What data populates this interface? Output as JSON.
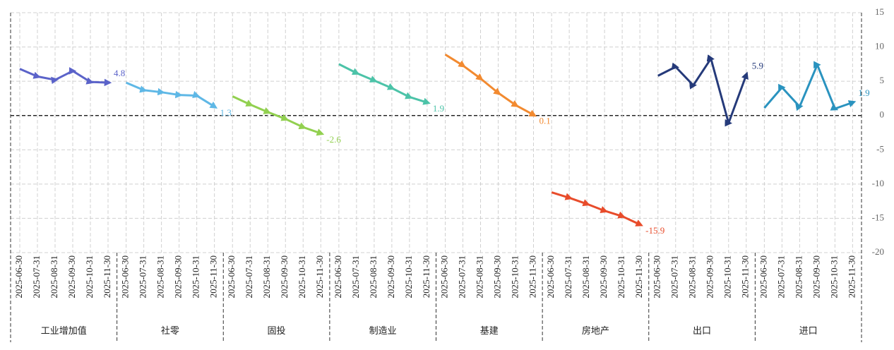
{
  "chart_data": {
    "type": "line",
    "x": [
      "2025-06-30",
      "2025-07-31",
      "2025-08-31",
      "2025-09-30",
      "2025-10-31",
      "2025-11-30"
    ],
    "series": [
      {
        "name": "工业增加值",
        "color": "#5b63c9",
        "values": [
          6.8,
          5.7,
          5.2,
          6.5,
          4.9,
          4.8
        ]
      },
      {
        "name": "社零",
        "color": "#5fb8e6",
        "values": [
          4.8,
          3.7,
          3.4,
          3.0,
          2.9,
          1.3
        ]
      },
      {
        "name": "固投",
        "color": "#92d050",
        "values": [
          2.8,
          1.6,
          0.5,
          -0.5,
          -1.7,
          -2.6
        ]
      },
      {
        "name": "制造业",
        "color": "#4cc3a8",
        "values": [
          7.5,
          6.2,
          5.1,
          4.0,
          2.7,
          1.9
        ]
      },
      {
        "name": "基建",
        "color": "#f28a30",
        "values": [
          8.9,
          7.3,
          5.4,
          3.3,
          1.5,
          0.1
        ]
      },
      {
        "name": "房地产",
        "color": "#e84c2b",
        "values": [
          -11.2,
          -12.0,
          -12.9,
          -13.9,
          -14.7,
          -15.9
        ]
      },
      {
        "name": "出口",
        "color": "#253a7a",
        "values": [
          5.8,
          7.1,
          4.4,
          8.3,
          -1.1,
          5.9
        ]
      },
      {
        "name": "进口",
        "color": "#2a93bf",
        "values": [
          1.1,
          4.1,
          1.3,
          7.4,
          1.0,
          1.9
        ]
      }
    ],
    "ylim": [
      -20,
      15
    ],
    "yticks": [
      -20,
      -15,
      -10,
      -5,
      0,
      5,
      10,
      15
    ],
    "grid": true
  }
}
